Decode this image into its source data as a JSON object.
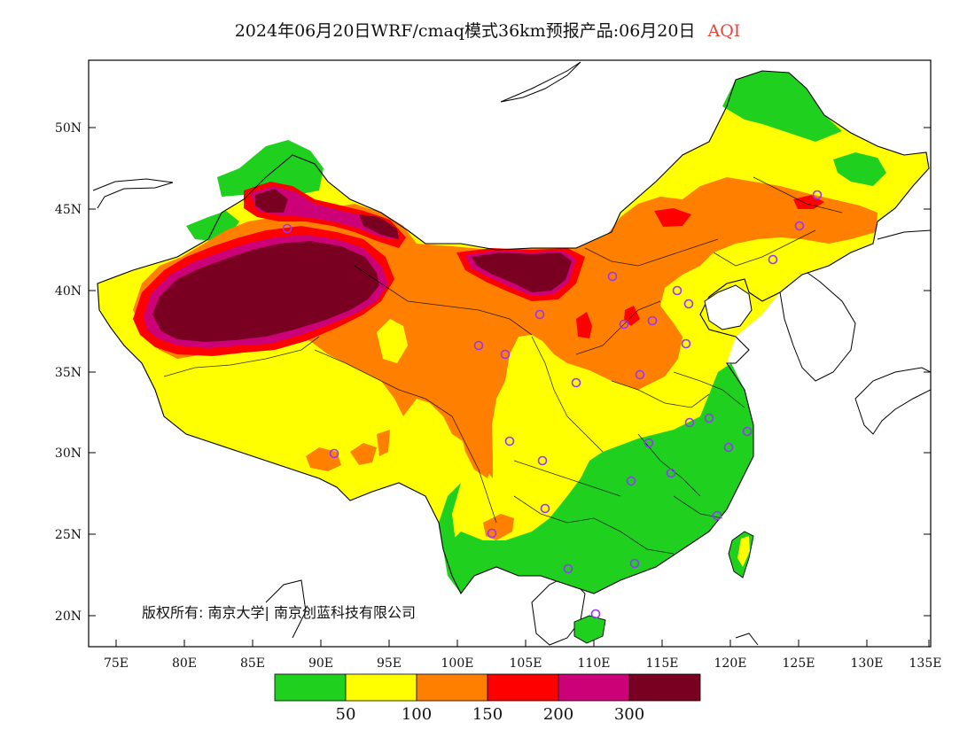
{
  "title": {
    "main": "2024年06月20日WRF/cmaq模式36km预报产品:06月20日",
    "variable": "AQI"
  },
  "axes": {
    "x_ticks": [
      "75E",
      "80E",
      "85E",
      "90E",
      "95E",
      "100E",
      "105E",
      "110E",
      "115E",
      "120E",
      "125E",
      "130E",
      "135E"
    ],
    "y_ticks": [
      "50N",
      "45N",
      "40N",
      "35N",
      "30N",
      "25N",
      "20N"
    ]
  },
  "copyright": "版权所有: 南京大学| 南京创蓝科技有限公司",
  "legend": {
    "colors": [
      "#1fd01f",
      "#ffff00",
      "#ff8000",
      "#ff0000",
      "#cc0077",
      "#7a0022"
    ],
    "labels": [
      "50",
      "100",
      "150",
      "200",
      "300"
    ]
  },
  "colors": {
    "good": "#1fd01f",
    "moderate": "#ffff00",
    "sensitive": "#ff8000",
    "unhealthy": "#ff0000",
    "very_unhealthy": "#cc0077",
    "hazardous": "#7a0022",
    "station_marker": "#9a33ff"
  }
}
